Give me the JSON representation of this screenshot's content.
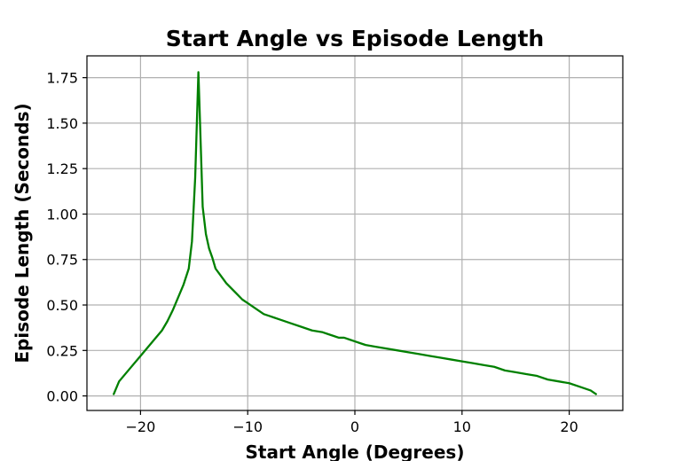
{
  "chart_data": {
    "type": "line",
    "title": "Start Angle vs Episode Length",
    "xlabel": "Start Angle (Degrees)",
    "ylabel": "Episode Length (Seconds)",
    "xlim": [
      -25,
      25
    ],
    "ylim": [
      -0.08,
      1.87
    ],
    "xticks": [
      -20,
      -10,
      0,
      10,
      20
    ],
    "xtick_labels": [
      "−20",
      "−10",
      "0",
      "10",
      "20"
    ],
    "yticks": [
      0.0,
      0.25,
      0.5,
      0.75,
      1.0,
      1.25,
      1.5,
      1.75
    ],
    "ytick_labels": [
      "0.00",
      "0.25",
      "0.50",
      "0.75",
      "1.00",
      "1.25",
      "1.50",
      "1.75"
    ],
    "grid": true,
    "series": [
      {
        "color": "#008000",
        "x": [
          -22.5,
          -22.0,
          -21.0,
          -20.0,
          -19.0,
          -18.0,
          -17.5,
          -17.0,
          -16.5,
          -16.0,
          -15.5,
          -15.2,
          -14.9,
          -14.6,
          -14.5,
          -14.2,
          -13.9,
          -13.6,
          -13.3,
          -13.0,
          -12.5,
          -12.0,
          -11.5,
          -11.0,
          -10.5,
          -10.0,
          -9.5,
          -9.0,
          -8.5,
          -8.0,
          -7.5,
          -7.0,
          -6.0,
          -5.0,
          -4.0,
          -3.0,
          -2.5,
          -2.0,
          -1.5,
          -1.0,
          -0.5,
          0.0,
          0.5,
          1.0,
          2.0,
          3.0,
          4.0,
          5.0,
          6.0,
          7.0,
          8.0,
          9.0,
          10.0,
          11.0,
          12.0,
          13.0,
          14.0,
          15.0,
          16.0,
          17.0,
          18.0,
          19.0,
          20.0,
          21.0,
          22.0,
          22.5
        ],
        "y": [
          0.01,
          0.08,
          0.15,
          0.22,
          0.29,
          0.36,
          0.41,
          0.47,
          0.54,
          0.61,
          0.7,
          0.85,
          1.2,
          1.78,
          1.6,
          1.04,
          0.89,
          0.81,
          0.76,
          0.7,
          0.66,
          0.62,
          0.59,
          0.56,
          0.53,
          0.51,
          0.49,
          0.47,
          0.45,
          0.44,
          0.43,
          0.42,
          0.4,
          0.38,
          0.36,
          0.35,
          0.34,
          0.33,
          0.32,
          0.32,
          0.31,
          0.3,
          0.29,
          0.28,
          0.27,
          0.26,
          0.25,
          0.24,
          0.23,
          0.22,
          0.21,
          0.2,
          0.19,
          0.18,
          0.17,
          0.16,
          0.14,
          0.13,
          0.12,
          0.11,
          0.09,
          0.08,
          0.07,
          0.05,
          0.03,
          0.01
        ]
      }
    ]
  }
}
